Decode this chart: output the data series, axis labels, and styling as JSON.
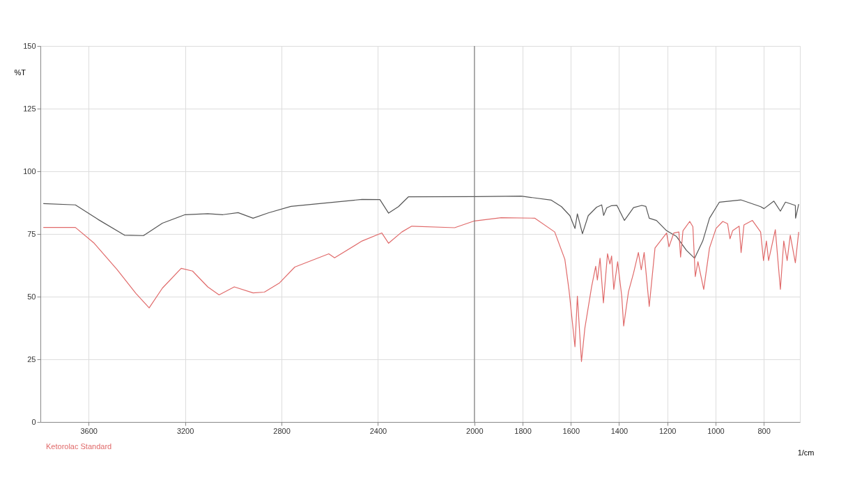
{
  "chart_data": {
    "type": "line",
    "xlabel": "1/cm",
    "ylabel": "%T",
    "xlim": [
      3800,
      650
    ],
    "ylim": [
      0,
      150
    ],
    "xticks": [
      3600,
      3200,
      2800,
      2400,
      2000,
      1800,
      1600,
      1400,
      1200,
      1000,
      800
    ],
    "yticks": [
      0,
      25,
      50,
      75,
      100,
      125,
      150
    ],
    "grid": true,
    "ref_lines": [
      {
        "axis": "x",
        "value": 2000,
        "color": "#707070"
      }
    ],
    "series": [
      {
        "color": "#555555",
        "x": [
          3788,
          3655,
          3561,
          3451,
          3373,
          3294,
          3200,
          3106,
          3043,
          2980,
          2918,
          2855,
          2761,
          2620,
          2466,
          2392,
          2356,
          2315,
          2274,
          2000,
          1806,
          1681,
          1639,
          1604,
          1583,
          1573,
          1552,
          1528,
          1493,
          1472,
          1464,
          1451,
          1431,
          1409,
          1378,
          1340,
          1306,
          1289,
          1275,
          1245,
          1203,
          1162,
          1121,
          1087,
          1053,
          1025,
          984,
          895,
          813,
          799,
          758,
          731,
          710,
          669,
          668,
          655
        ],
        "values": [
          87.1,
          86.6,
          80.8,
          74.5,
          74.3,
          79.3,
          82.7,
          83.1,
          82.7,
          83.5,
          81.3,
          83.4,
          86,
          87.3,
          88.8,
          88.7,
          83.3,
          85.9,
          89.8,
          89.9,
          90.1,
          88.5,
          85.9,
          82.3,
          77.2,
          83,
          75.1,
          82.3,
          85.7,
          86.6,
          82.4,
          85.4,
          86.3,
          86.4,
          80.4,
          85.5,
          86.4,
          86,
          81.3,
          80.4,
          76.3,
          74,
          68.5,
          65.3,
          72.2,
          81.3,
          87.7,
          88.6,
          85.9,
          85.1,
          88.1,
          84.1,
          87.7,
          86.4,
          81.3,
          86.9
        ]
      },
      {
        "name": "Ketorolac Standard",
        "color": "#e06a6a",
        "x": [
          3788,
          3655,
          3577,
          3482,
          3404,
          3349,
          3294,
          3216,
          3169,
          3106,
          3059,
          2996,
          2918,
          2871,
          2808,
          2745,
          2604,
          2580,
          2466,
          2384,
          2356,
          2301,
          2260,
          2082,
          2000,
          1889,
          1750,
          1667,
          1625,
          1608,
          1583,
          1573,
          1556,
          1542,
          1514,
          1497,
          1490,
          1479,
          1465,
          1448,
          1438,
          1431,
          1422,
          1406,
          1389,
          1381,
          1361,
          1340,
          1320,
          1308,
          1296,
          1275,
          1251,
          1203,
          1193,
          1173,
          1152,
          1145,
          1135,
          1107,
          1094,
          1084,
          1073,
          1049,
          1025,
          998,
          970,
          950,
          940,
          929,
          902,
          894,
          882,
          847,
          813,
          801,
          789,
          780,
          752,
          731,
          717,
          703,
          690,
          669,
          655
        ],
        "values": [
          77.6,
          77.6,
          71.3,
          60.8,
          51.3,
          45.5,
          53.4,
          61.3,
          60.2,
          53.9,
          50.7,
          53.9,
          51.5,
          51.8,
          55.5,
          61.8,
          67.1,
          65.5,
          72.2,
          75.4,
          71.3,
          75.8,
          78.1,
          77.5,
          80.2,
          81.5,
          81.3,
          75.8,
          64.9,
          52.9,
          30,
          50.2,
          24.1,
          37.4,
          53.9,
          62.1,
          56.6,
          65.3,
          47.5,
          67.1,
          63,
          66.2,
          52.9,
          63.9,
          50.2,
          38.3,
          52,
          59.4,
          67.6,
          60.7,
          67.6,
          46.1,
          69.4,
          75.4,
          69.9,
          75.4,
          75.8,
          65.8,
          76.3,
          80,
          77.9,
          58,
          63.9,
          52.9,
          69.4,
          77.2,
          80,
          79.1,
          73.1,
          76.3,
          78.1,
          67.6,
          78.6,
          80.4,
          75.8,
          64.4,
          72.2,
          64.4,
          76.7,
          52.9,
          72.2,
          64.4,
          74.5,
          63.5,
          75.8
        ]
      }
    ]
  }
}
